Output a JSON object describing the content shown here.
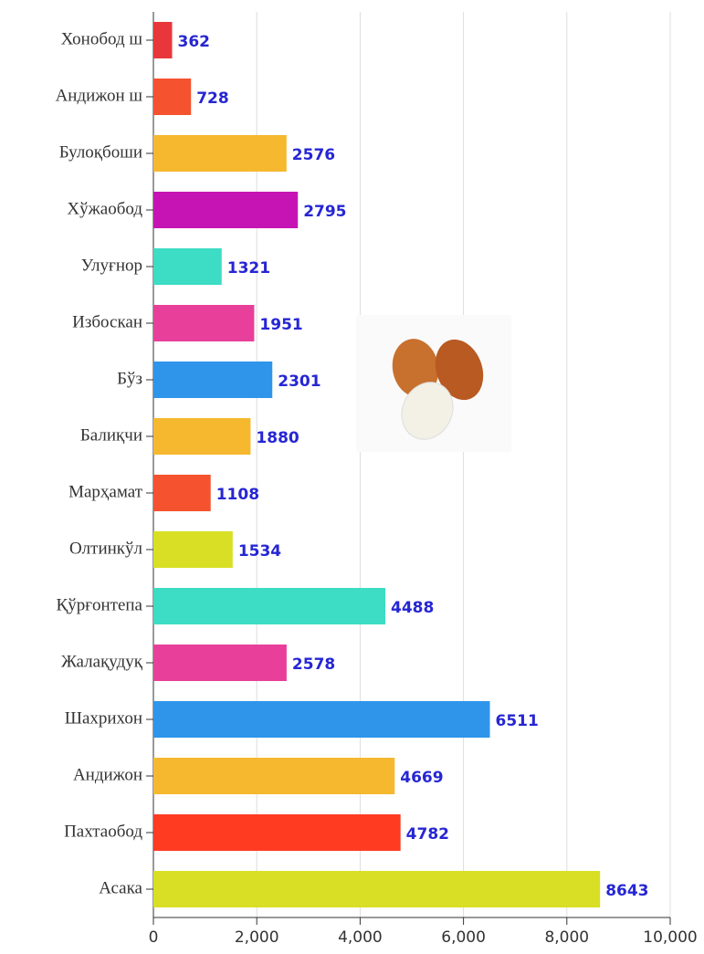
{
  "chart_data": {
    "type": "bar",
    "orientation": "horizontal",
    "categories": [
      "Хонобод ш",
      "Андижон ш",
      "Булоқбоши",
      "Хўжаобод",
      "Улуғнор",
      "Избоскан",
      "Бўз",
      "Балиқчи",
      "Марҳамат",
      "Олтинкўл",
      "Қўрғонтепа",
      "Жалақудуқ",
      "Шахрихон",
      "Андижон",
      "Пахтаобод",
      "Асака"
    ],
    "values": [
      362,
      728,
      2576,
      2795,
      1321,
      1951,
      2301,
      1880,
      1108,
      1534,
      4488,
      2578,
      6511,
      4669,
      4782,
      8643
    ],
    "colors": [
      "#e8363a",
      "#f5522f",
      "#f5b82e",
      "#c614b4",
      "#3ddcc4",
      "#e8409a",
      "#2e95ea",
      "#f5b82e",
      "#f5522f",
      "#d8df24",
      "#3ddcc4",
      "#e8409a",
      "#2e95ea",
      "#f5b82e",
      "#ff3b22",
      "#d8df24"
    ],
    "xlim": [
      0,
      10000
    ],
    "xticks": [
      0,
      {
        "value": 2000,
        "label": "2,000"
      },
      {
        "value": 4000,
        "label": "4,000"
      },
      {
        "value": 6000,
        "label": "6,000"
      },
      {
        "value": 8000,
        "label": "8,000"
      },
      {
        "value": 10000,
        "label": "10,000"
      }
    ],
    "grid": true
  }
}
